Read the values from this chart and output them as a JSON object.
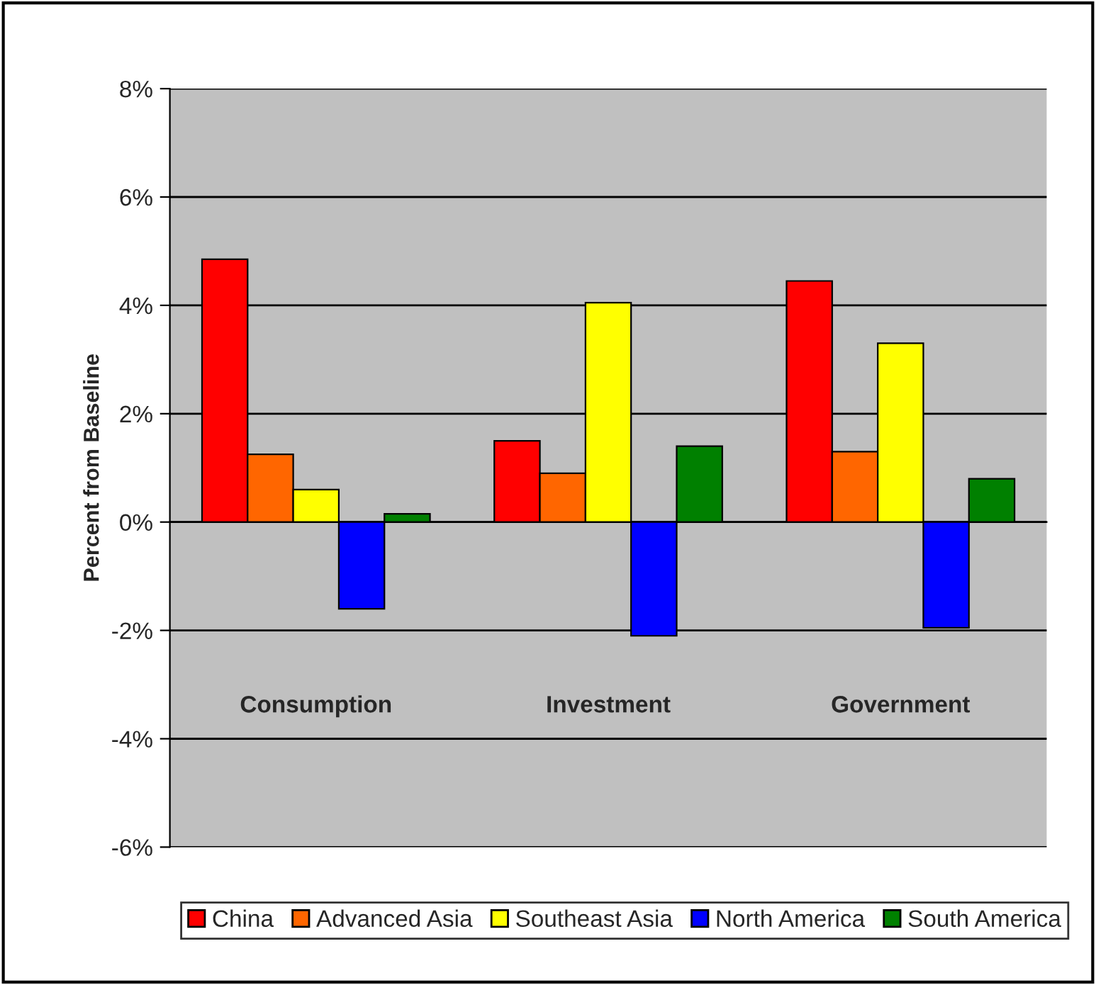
{
  "chart_data": {
    "type": "bar",
    "ylabel": "Percent from Baseline",
    "categories": [
      "Consumption",
      "Investment",
      "Government"
    ],
    "series": [
      {
        "name": "China",
        "color": "#ff0000",
        "values": [
          4.85,
          1.5,
          4.45
        ]
      },
      {
        "name": "Advanced Asia",
        "color": "#ff6600",
        "values": [
          1.25,
          0.9,
          1.3
        ]
      },
      {
        "name": "Southeast Asia",
        "color": "#ffff00",
        "values": [
          0.6,
          4.05,
          3.3
        ]
      },
      {
        "name": "North America",
        "color": "#0000ff",
        "values": [
          -1.6,
          -2.1,
          -1.95
        ]
      },
      {
        "name": "South America",
        "color": "#008000",
        "values": [
          0.15,
          1.4,
          0.8
        ]
      }
    ],
    "ylim": [
      -6,
      8
    ],
    "yticks": [
      {
        "value": -6,
        "label": "-6%"
      },
      {
        "value": -4,
        "label": "-4%"
      },
      {
        "value": -2,
        "label": "-2%"
      },
      {
        "value": 0,
        "label": "0%"
      },
      {
        "value": 2,
        "label": "2%"
      },
      {
        "value": 4,
        "label": "4%"
      },
      {
        "value": 6,
        "label": "6%"
      },
      {
        "value": 8,
        "label": "8%"
      }
    ],
    "grid": "y",
    "legend": "bottom"
  }
}
